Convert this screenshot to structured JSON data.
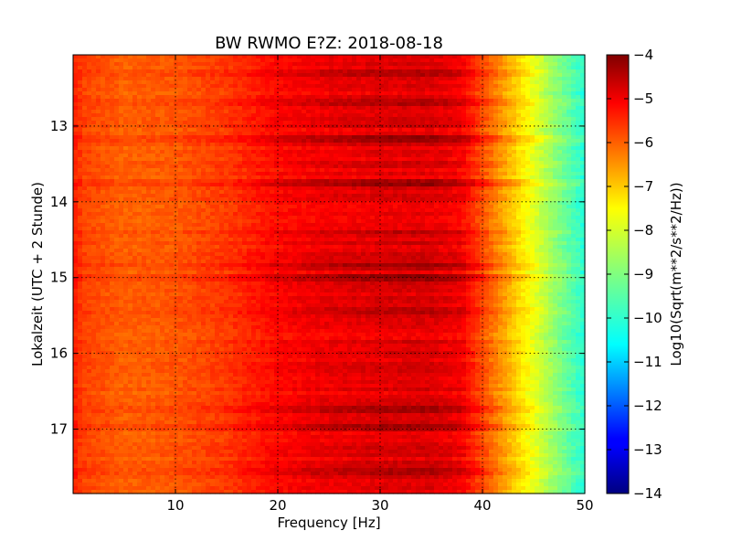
{
  "chart_data": {
    "type": "heatmap",
    "title": "BW RWMO E?Z: 2018-08-18",
    "xlabel": "Frequency [Hz]",
    "ylabel": "Lokalzeit (UTC + 2 Stunde)",
    "xlim": [
      0,
      50
    ],
    "ylim": [
      12.06,
      17.85
    ],
    "y_inverted": true,
    "grid": true,
    "x_ticks": [
      10,
      20,
      30,
      40,
      50
    ],
    "y_ticks": [
      13,
      14,
      15,
      16,
      17
    ],
    "colorbar": {
      "label": "Log10(Sqrt(m**2/s**2/Hz))",
      "range": [
        -14,
        -4
      ],
      "ticks": [
        -4,
        -5,
        -6,
        -7,
        -8,
        -9,
        -10,
        -11,
        -12,
        -13,
        -14
      ],
      "colormap": "jet"
    },
    "spectral_profile": {
      "frequency_hz": [
        0,
        1,
        5,
        10,
        15,
        20,
        25,
        30,
        35,
        38,
        40,
        42,
        44,
        46,
        48,
        50
      ],
      "log10_amplitude": [
        -5.5,
        -5.9,
        -6.2,
        -6.1,
        -5.8,
        -5.3,
        -5.1,
        -5.0,
        -4.95,
        -5.2,
        -6.0,
        -6.8,
        -7.6,
        -8.4,
        -9.2,
        -9.9
      ]
    },
    "strong_time_bands_hours": [
      12.3,
      12.7,
      13.15,
      13.75,
      14.4,
      14.85,
      15.0,
      15.45,
      16.75,
      17.0,
      17.55
    ]
  }
}
